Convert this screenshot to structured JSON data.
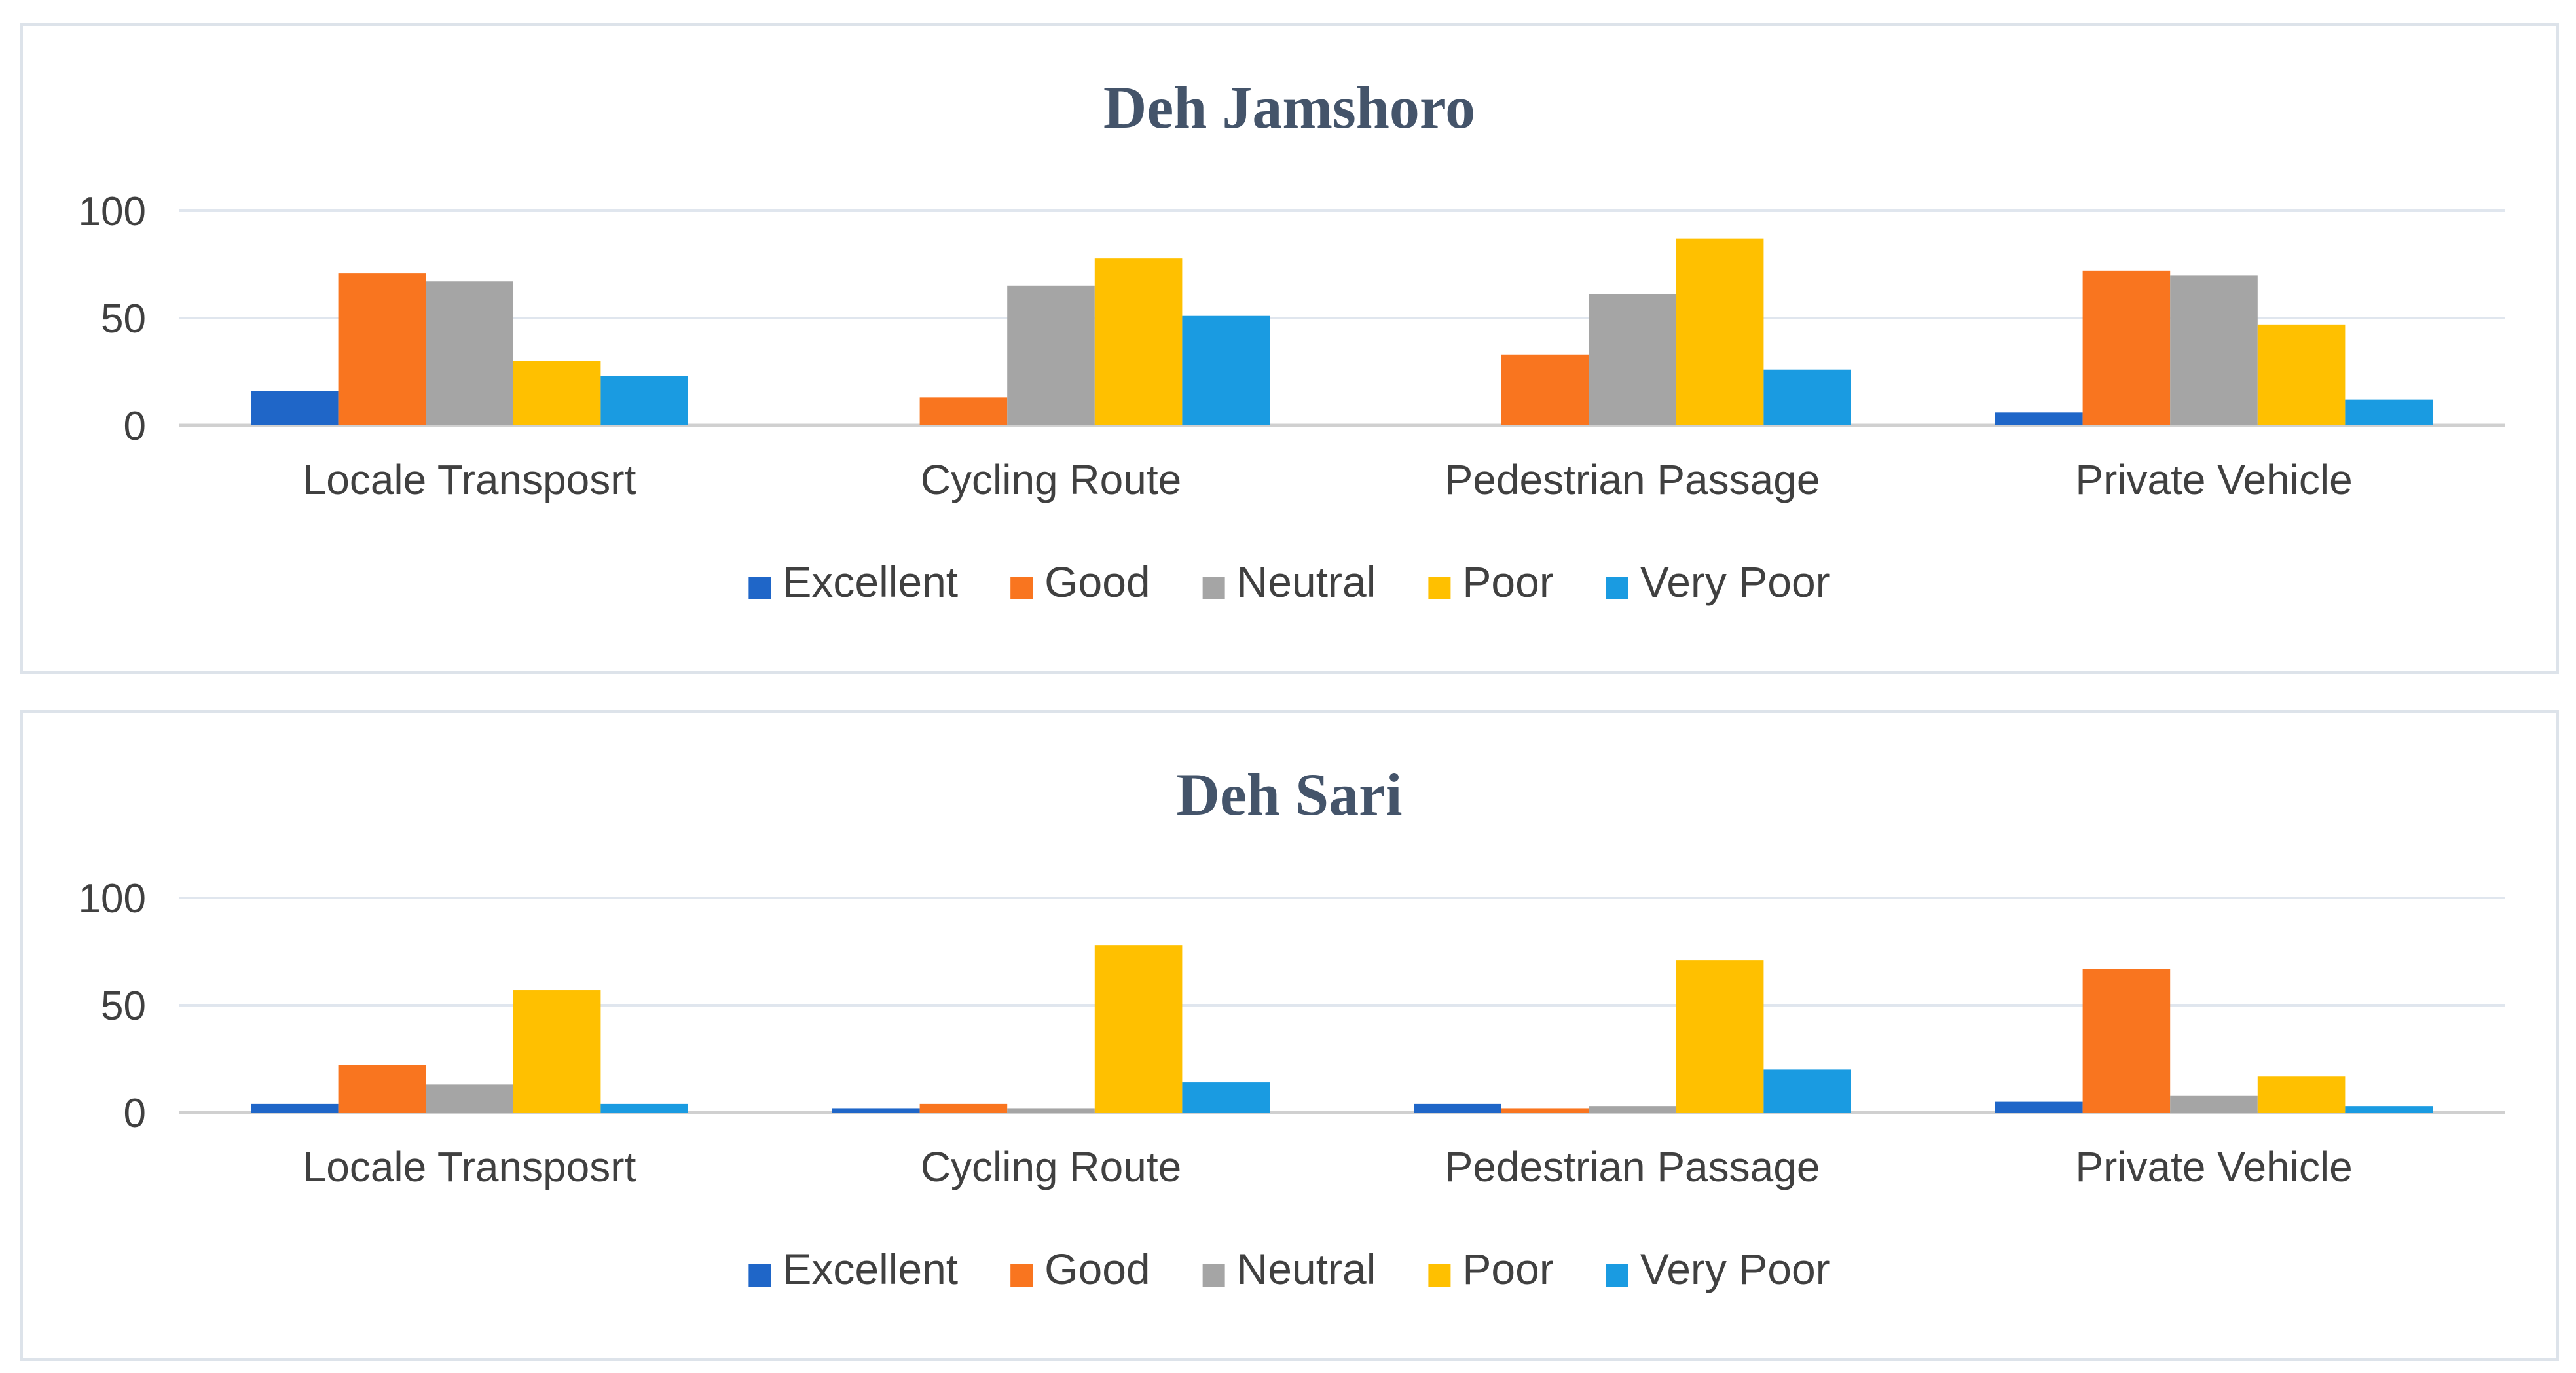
{
  "chart_data": [
    {
      "type": "bar",
      "title": "Deh Jamshoro",
      "categories": [
        "Locale Transposrt",
        "Cycling Route",
        "Pedestrian Passage",
        "Private Vehicle"
      ],
      "series": [
        {
          "name": "Excellent",
          "color": "#1f66c8",
          "values": [
            16,
            0,
            0,
            6
          ]
        },
        {
          "name": "Good",
          "color": "#f9751f",
          "values": [
            71,
            13,
            33,
            72
          ]
        },
        {
          "name": "Neutral",
          "color": "#a5a5a5",
          "values": [
            67,
            65,
            61,
            70
          ]
        },
        {
          "name": "Poor",
          "color": "#ffc000",
          "values": [
            30,
            78,
            87,
            47
          ]
        },
        {
          "name": "Very Poor",
          "color": "#1a9be1",
          "values": [
            23,
            51,
            26,
            12
          ]
        }
      ],
      "yticks": [
        0,
        50,
        100
      ],
      "ylim": [
        0,
        100
      ],
      "xlabel": "",
      "ylabel": "",
      "grid": true,
      "legend": "bottom"
    },
    {
      "type": "bar",
      "title": "Deh Sari",
      "categories": [
        "Locale Transposrt",
        "Cycling Route",
        "Pedestrian Passage",
        "Private Vehicle"
      ],
      "series": [
        {
          "name": "Excellent",
          "color": "#1f66c8",
          "values": [
            4,
            2,
            4,
            5
          ]
        },
        {
          "name": "Good",
          "color": "#f9751f",
          "values": [
            22,
            4,
            2,
            67
          ]
        },
        {
          "name": "Neutral",
          "color": "#a5a5a5",
          "values": [
            13,
            2,
            3,
            8
          ]
        },
        {
          "name": "Poor",
          "color": "#ffc000",
          "values": [
            57,
            78,
            71,
            17
          ]
        },
        {
          "name": "Very Poor",
          "color": "#1a9be1",
          "values": [
            4,
            14,
            20,
            3
          ]
        }
      ],
      "yticks": [
        0,
        50,
        100
      ],
      "ylim": [
        0,
        100
      ],
      "xlabel": "",
      "ylabel": "",
      "grid": true,
      "legend": "bottom"
    }
  ]
}
